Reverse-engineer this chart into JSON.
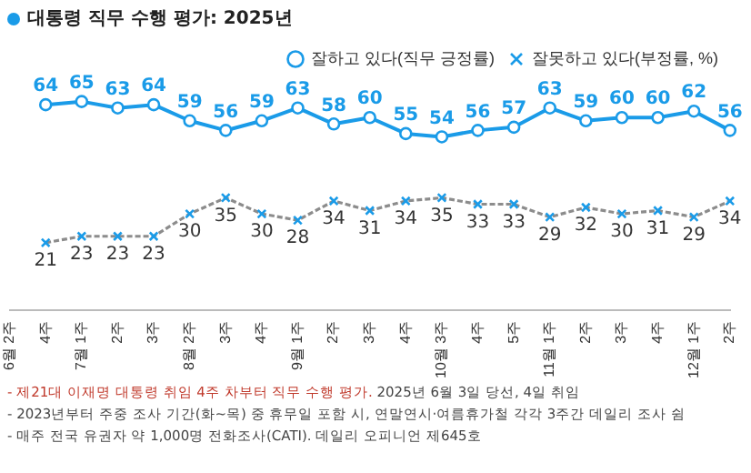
{
  "chart_data": {
    "type": "line",
    "title": "대통령 직무 수행 평가: 2025년",
    "categories": [
      "6월 2주",
      "4주",
      "7월 1주",
      "2주",
      "3주",
      "8월 2주",
      "3주",
      "4주",
      "9월 1주",
      "2주",
      "3주",
      "4주",
      "10월 3주",
      "4주",
      "5주",
      "11월 1주",
      "2주",
      "3주",
      "4주",
      "12월 1주",
      "2주"
    ],
    "series": [
      {
        "name": "잘하고 있다(직무 긍정률)",
        "color": "#1a9be8",
        "marker": "circle",
        "line_style": "solid",
        "values": [
          null,
          64,
          65,
          63,
          64,
          59,
          56,
          59,
          63,
          58,
          60,
          55,
          54,
          56,
          57,
          63,
          59,
          60,
          60,
          62,
          56
        ]
      },
      {
        "name": "잘못하고 있다(부정률, %)",
        "color": "#8c8c8c",
        "marker": "cross",
        "line_style": "dashed",
        "values": [
          null,
          21,
          23,
          23,
          23,
          30,
          35,
          30,
          28,
          34,
          31,
          34,
          35,
          33,
          33,
          29,
          32,
          30,
          31,
          29,
          34
        ]
      }
    ],
    "tick_labels": "x",
    "grid": false,
    "legend": "top right",
    "data_labels": true,
    "annotations": [
      "- 제21대 이재명 대통령 취임 4주 차부터 직무 수행 평가.",
      "2025년 6월 3일 당선, 4일 취임",
      "- 2023년부터 주중 조사 기간(화~목) 중 휴무일 포함 시, 연말연시·여름휴가철 각각 3주간 데일리 조사 쉼",
      "- 매주 전국 유권자 약 1,000명 전화조사(CATI). 데일리 오피니언 제645호"
    ]
  }
}
